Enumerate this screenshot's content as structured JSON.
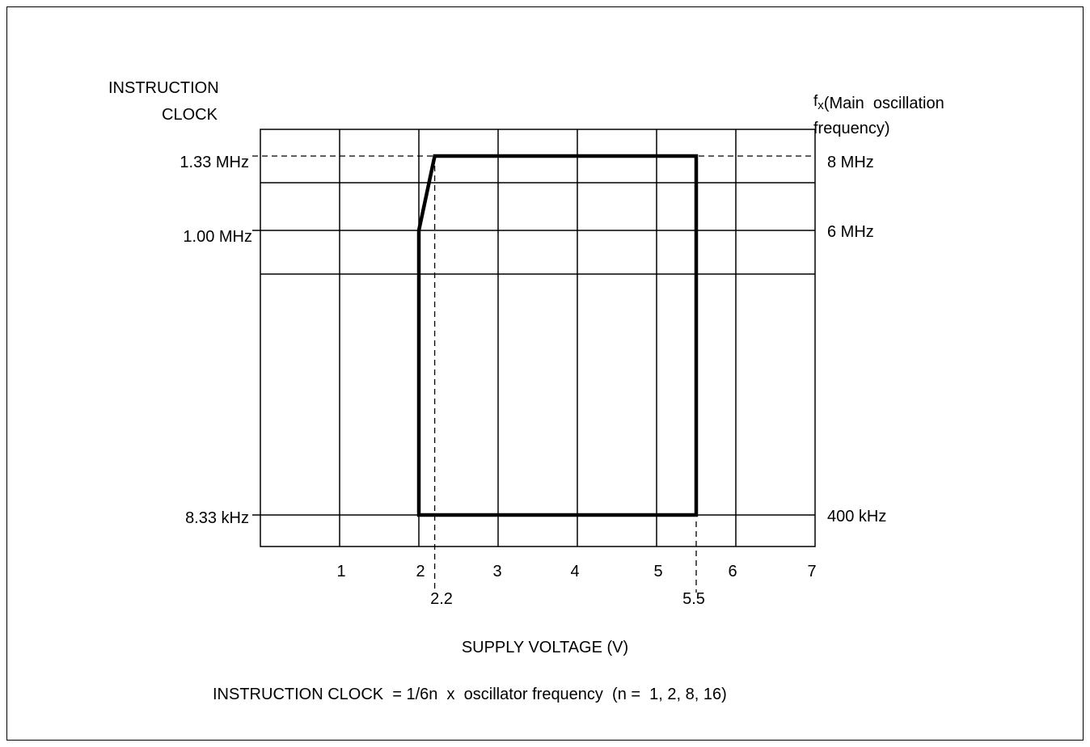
{
  "chart_data": {
    "type": "area",
    "title": "",
    "left_axis": {
      "label_line1": "INSTRUCTION",
      "label_line2": "CLOCK",
      "ticks": [
        "1.33 MHz",
        "1.00 MHz",
        "8.33 kHz"
      ]
    },
    "right_axis": {
      "label_prefix": "f",
      "label_sub": "X",
      "label_rest": "(Main  oscillation",
      "label_line2": "frequency)",
      "ticks": [
        "8 MHz",
        "6 MHz",
        "400 kHz"
      ],
      "tick_values_mhz": [
        8,
        6,
        0.4
      ]
    },
    "x_axis": {
      "label": "SUPPLY VOLTAGE (V)",
      "range": [
        0,
        7
      ],
      "tick_labels": [
        "1",
        "2",
        "3",
        "4",
        "5",
        "6",
        "7"
      ],
      "ref_labels": [
        "2.2",
        "5.5"
      ],
      "ref_values": [
        2.2,
        5.5
      ]
    },
    "operating_region": {
      "points": [
        {
          "voltage": 2.0,
          "fx_mhz": 0.4
        },
        {
          "voltage": 2.0,
          "fx_mhz": 6
        },
        {
          "voltage": 2.2,
          "fx_mhz": 8
        },
        {
          "voltage": 5.5,
          "fx_mhz": 8
        },
        {
          "voltage": 5.5,
          "fx_mhz": 0.4
        }
      ]
    },
    "grid": true
  },
  "footnote": "INSTRUCTION CLOCK  = 1/6n  x  oscillator frequency  (n =  1, 2, 8, 16)"
}
